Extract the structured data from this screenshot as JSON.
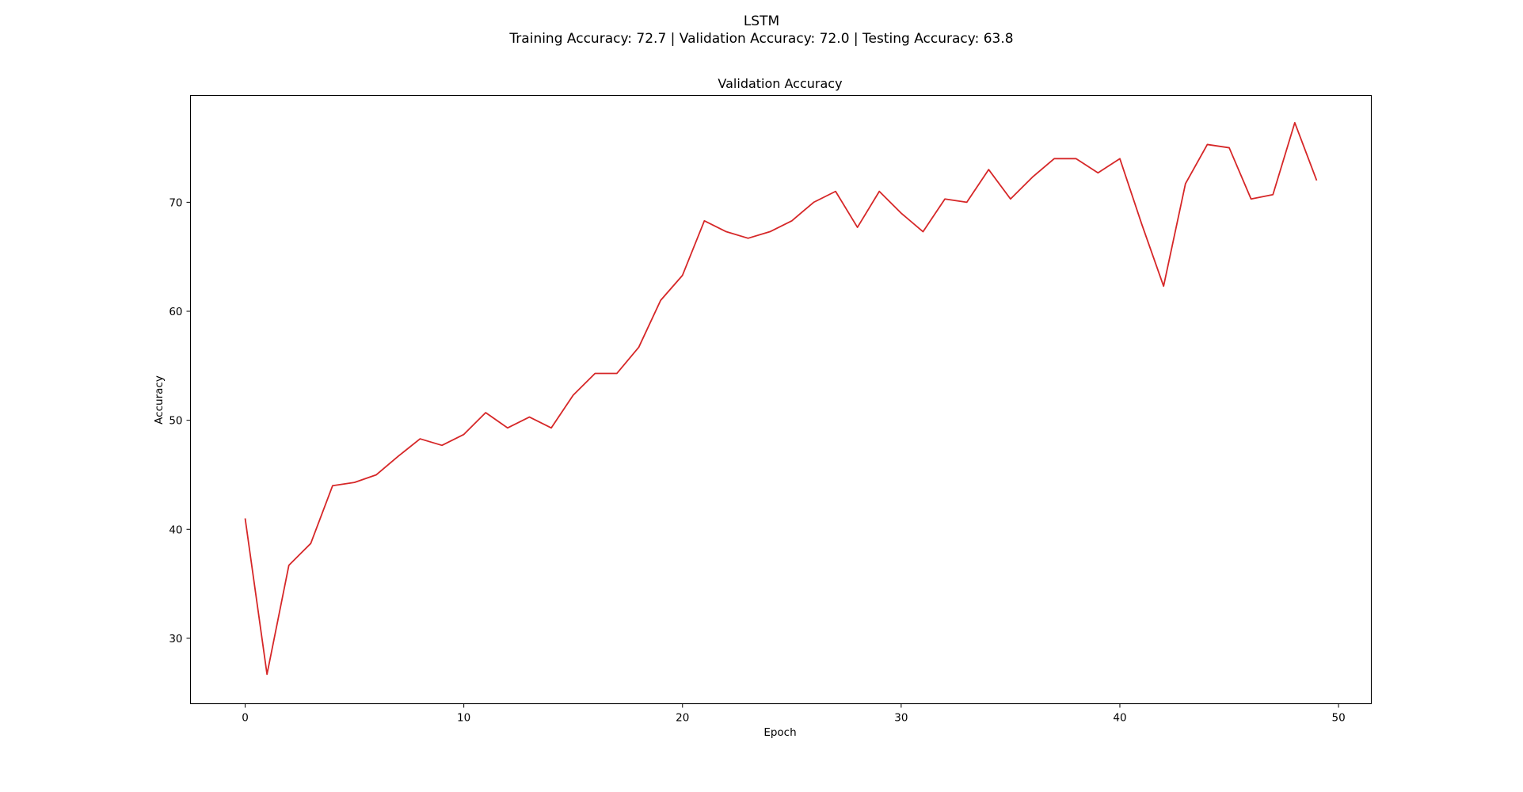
{
  "figure": {
    "title": "LSTM",
    "subtitle": "Training Accuracy: 72.7 | Validation Accuracy: 72.0 | Testing Accuracy: 63.8"
  },
  "chart_data": {
    "type": "line",
    "title": "Validation Accuracy",
    "xlabel": "Epoch",
    "ylabel": "Accuracy",
    "xlim": [
      -2.5,
      51.5
    ],
    "ylim": [
      24.0,
      79.8
    ],
    "xticks": [
      0,
      10,
      20,
      30,
      40,
      50
    ],
    "yticks": [
      30,
      40,
      50,
      60,
      70
    ],
    "grid": false,
    "color": "#d62728",
    "series": [
      {
        "x": [
          0,
          1,
          2,
          3,
          4,
          5,
          6,
          7,
          8,
          9,
          10,
          11,
          12,
          13,
          14,
          15,
          16,
          17,
          18,
          19,
          20,
          21,
          22,
          23,
          24,
          25,
          26,
          27,
          28,
          29,
          30,
          31,
          32,
          33,
          34,
          35,
          36,
          37,
          38,
          39,
          40,
          41,
          42,
          43,
          44,
          45,
          46,
          47,
          48,
          49
        ],
        "values": [
          41.0,
          26.7,
          36.7,
          38.7,
          44.0,
          44.3,
          45.0,
          46.7,
          48.3,
          47.7,
          48.7,
          50.7,
          49.3,
          50.3,
          49.3,
          52.3,
          54.3,
          54.3,
          56.7,
          61.0,
          63.3,
          68.3,
          67.3,
          66.7,
          67.3,
          68.3,
          70.0,
          71.0,
          67.7,
          71.0,
          69.0,
          67.3,
          70.3,
          70.0,
          73.0,
          70.3,
          72.3,
          74.0,
          74.0,
          72.7,
          74.0,
          68.0,
          62.3,
          71.7,
          75.3,
          75.0,
          70.3,
          70.7,
          77.3,
          72.0
        ]
      }
    ]
  }
}
